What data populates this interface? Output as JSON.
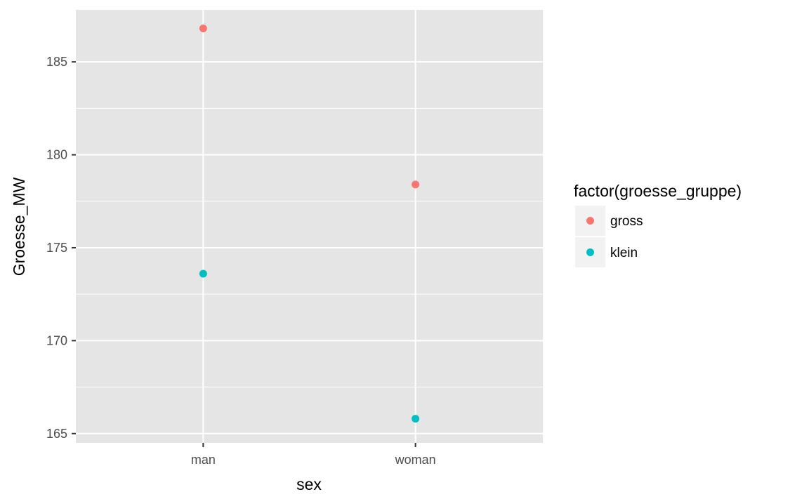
{
  "chart_data": {
    "type": "scatter",
    "xlabel": "sex",
    "ylabel": "Groesse_MW",
    "categories": [
      "man",
      "woman"
    ],
    "ylim": [
      164.5,
      187.8
    ],
    "y_ticks": [
      165,
      170,
      175,
      180,
      185
    ],
    "y_tick_labels": [
      "165",
      "170",
      "175",
      "180",
      "185"
    ],
    "grid": true,
    "legend": {
      "title": "factor(groesse_gruppe)",
      "position": "right",
      "entries": [
        {
          "label": "gross",
          "color": "#F8766D"
        },
        {
          "label": "klein",
          "color": "#00BFC4"
        }
      ]
    },
    "series": [
      {
        "name": "gross",
        "color": "#F8766D",
        "points": [
          {
            "x": "man",
            "y": 186.8
          },
          {
            "x": "woman",
            "y": 178.4
          }
        ]
      },
      {
        "name": "klein",
        "color": "#00BFC4",
        "points": [
          {
            "x": "man",
            "y": 173.6
          },
          {
            "x": "woman",
            "y": 165.8
          }
        ]
      }
    ]
  },
  "colors": {
    "panel_background": "#E5E5E5",
    "grid_major": "#FFFFFF",
    "legend_key_background": "#F2F2F2"
  }
}
